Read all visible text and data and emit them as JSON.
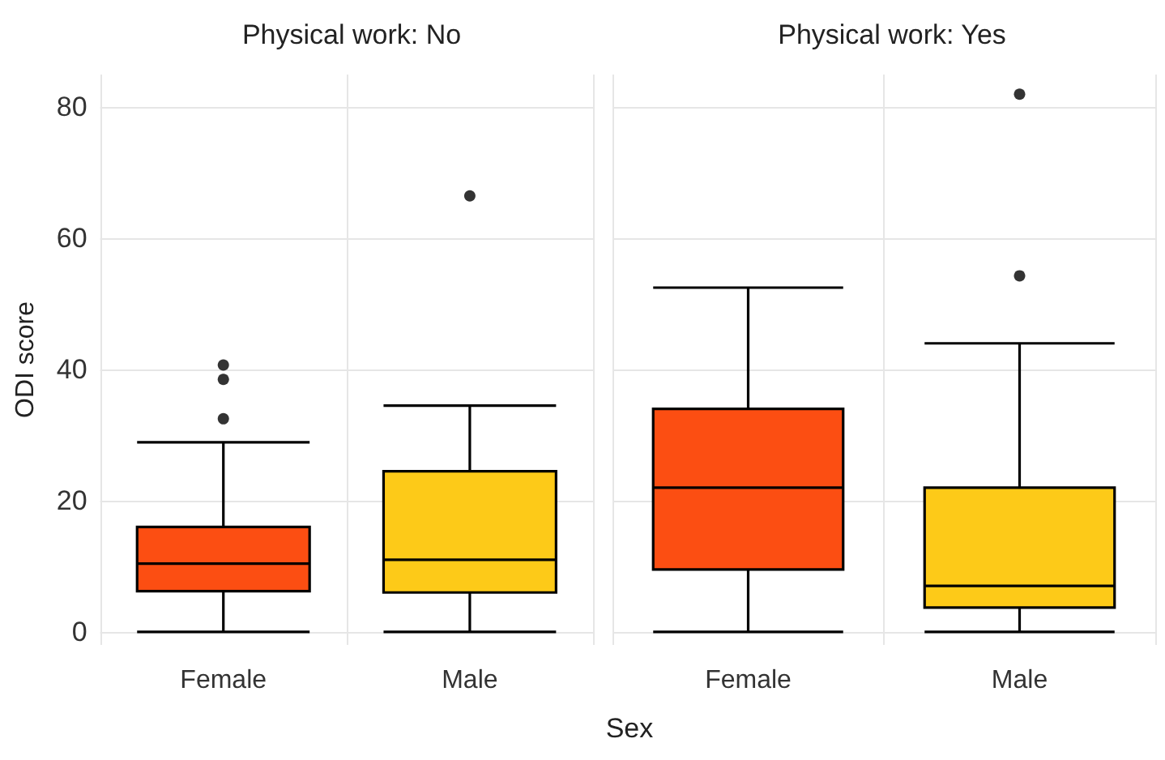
{
  "chart_data": [
    {
      "type": "box",
      "title": "Physical work: No",
      "xlabel": "Sex",
      "ylabel": "ODI score",
      "categories": [
        "Female",
        "Male"
      ],
      "colors": [
        "#fc4e12",
        "#fdca18"
      ],
      "boxes": [
        {
          "low": 0,
          "q1": 6.2,
          "median": 10.4,
          "q3": 16,
          "high": 28.9,
          "outliers": [
            40.7,
            38.5,
            32.5
          ]
        },
        {
          "low": 0,
          "q1": 6,
          "median": 11,
          "q3": 24.5,
          "high": 34.5,
          "outliers": [
            66.5
          ]
        }
      ],
      "ylim": [
        -2,
        85
      ],
      "yticks": [
        0,
        20,
        40,
        60,
        80
      ],
      "grid": true
    },
    {
      "type": "box",
      "title": "Physical work: Yes",
      "categories": [
        "Female",
        "Male"
      ],
      "colors": [
        "#fc4e12",
        "#fdca18"
      ],
      "boxes": [
        {
          "low": 0,
          "q1": 9.5,
          "median": 22,
          "q3": 34,
          "high": 52.5
        },
        {
          "low": 0,
          "q1": 3.7,
          "median": 7,
          "q3": 22,
          "high": 44,
          "outliers": [
            54.3,
            82
          ]
        }
      ],
      "ylim": [
        -2,
        85
      ],
      "yticks": [
        0,
        20,
        40,
        60,
        80
      ],
      "grid": true,
      "tick_labels": "x"
    }
  ]
}
